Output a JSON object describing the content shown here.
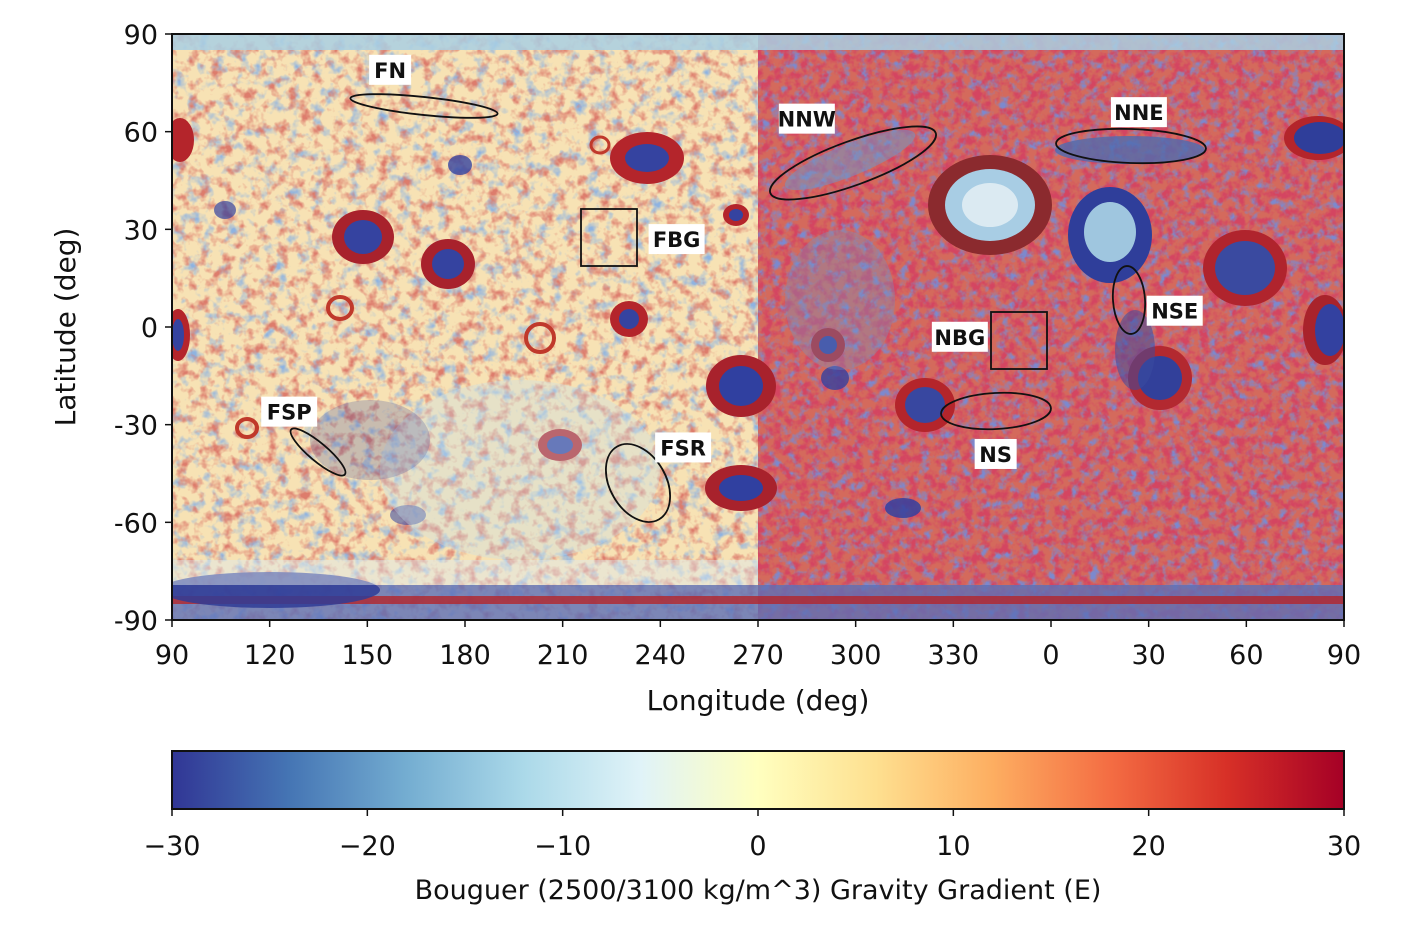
{
  "map": {
    "xlabel": "Longitude (deg)",
    "ylabel": "Latitude (deg)",
    "x_ticks": [
      "90",
      "120",
      "150",
      "180",
      "210",
      "240",
      "270",
      "300",
      "330",
      "0",
      "30",
      "60",
      "90"
    ],
    "y_ticks": [
      "90",
      "60",
      "30",
      "0",
      "-30",
      "-60",
      "-90"
    ],
    "lon_range": [
      90,
      450
    ],
    "lat_range": [
      -90,
      90
    ],
    "colormap": "RdYlBu_r",
    "regions": [
      {
        "id": "FN",
        "label": "FN",
        "shape": "ellipse",
        "center_lon": 152,
        "center_lat": 67,
        "label_lon": 157,
        "label_lat": 79
      },
      {
        "id": "FBG",
        "label": "FBG",
        "shape": "box",
        "lon": [
          216,
          233
        ],
        "lat": [
          18,
          36
        ],
        "label_lon": 245,
        "label_lat": 27
      },
      {
        "id": "FSP",
        "label": "FSP",
        "shape": "ellipse",
        "center_lon": 134,
        "center_lat": -38,
        "label_lon": 126,
        "label_lat": -26
      },
      {
        "id": "FSR",
        "label": "FSR",
        "shape": "ellipse",
        "center_lon": 232,
        "center_lat": -47,
        "label_lon": 247,
        "label_lat": -37
      },
      {
        "id": "NNW",
        "label": "NNW",
        "shape": "ellipse",
        "center_lon": 298,
        "center_lat": 50,
        "label_lon": 285,
        "label_lat": 64
      },
      {
        "id": "NNE",
        "label": "NNE",
        "shape": "ellipse",
        "center_lon": 25,
        "center_lat": 55,
        "label_lon": 27,
        "label_lat": 66
      },
      {
        "id": "NBG",
        "label": "NBG",
        "shape": "box",
        "lon": [
          342,
          359
        ],
        "lat": [
          -13,
          5
        ],
        "label_lon": 332,
        "label_lat": -3
      },
      {
        "id": "NSE",
        "label": "NSE",
        "shape": "ellipse",
        "center_lon": 25,
        "center_lat": 8,
        "label_lon": 38,
        "label_lat": 5
      },
      {
        "id": "NS",
        "label": "NS",
        "shape": "ellipse",
        "center_lon": 343,
        "center_lat": -26,
        "label_lon": 343,
        "label_lat": -39
      }
    ]
  },
  "colorbar": {
    "title": "Bouguer (2500/3100 kg/m^3) Gravity Gradient (E)",
    "ticks": [
      "−30",
      "−20",
      "−10",
      "0",
      "10",
      "20",
      "30"
    ],
    "range": [
      -30,
      30
    ],
    "colors": [
      "#313695",
      "#4575b4",
      "#74add1",
      "#abd9e9",
      "#e0f3f8",
      "#ffffbf",
      "#fee090",
      "#fdae61",
      "#f46d43",
      "#d73027",
      "#a50026"
    ]
  }
}
